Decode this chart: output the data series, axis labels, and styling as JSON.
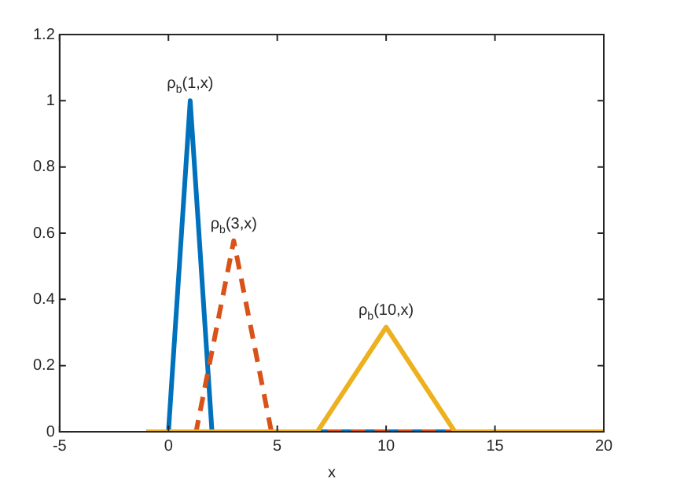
{
  "chart_data": {
    "type": "line",
    "xlabel": "x",
    "xlim": [
      -5,
      20
    ],
    "xticks": [
      -5,
      0,
      5,
      10,
      15,
      20
    ],
    "ylim": [
      0,
      1.2
    ],
    "yticks": [
      0,
      0.2,
      0.4,
      0.6,
      0.8,
      1,
      1.2
    ],
    "grid": false,
    "legend": false,
    "marker": "none",
    "series": [
      {
        "color": "#edb120",
        "line_style": "solid",
        "x": [
          -1,
          6.84,
          10,
          13.16,
          20
        ],
        "values": [
          0,
          0,
          0.316,
          0,
          0
        ]
      },
      {
        "color": "#d95319",
        "line_style": "dashed",
        "x": [
          -1,
          1.27,
          3,
          4.73,
          20
        ],
        "values": [
          0,
          0,
          0.577,
          0,
          0
        ]
      },
      {
        "color": "#0072bd",
        "line_style": "solid",
        "x": [
          -1,
          0,
          1,
          2,
          20
        ],
        "values": [
          0,
          0,
          1,
          0,
          0
        ]
      }
    ],
    "annotations": [
      {
        "text": "ρ$_{b}$(1,x)",
        "x": 1,
        "y": 1
      },
      {
        "text": "ρ$_{b}$(3,x)",
        "x": 3,
        "y": 0.577
      },
      {
        "text": "ρ$_{b}$(10,x)",
        "x": 10,
        "y": 0.316
      }
    ]
  }
}
